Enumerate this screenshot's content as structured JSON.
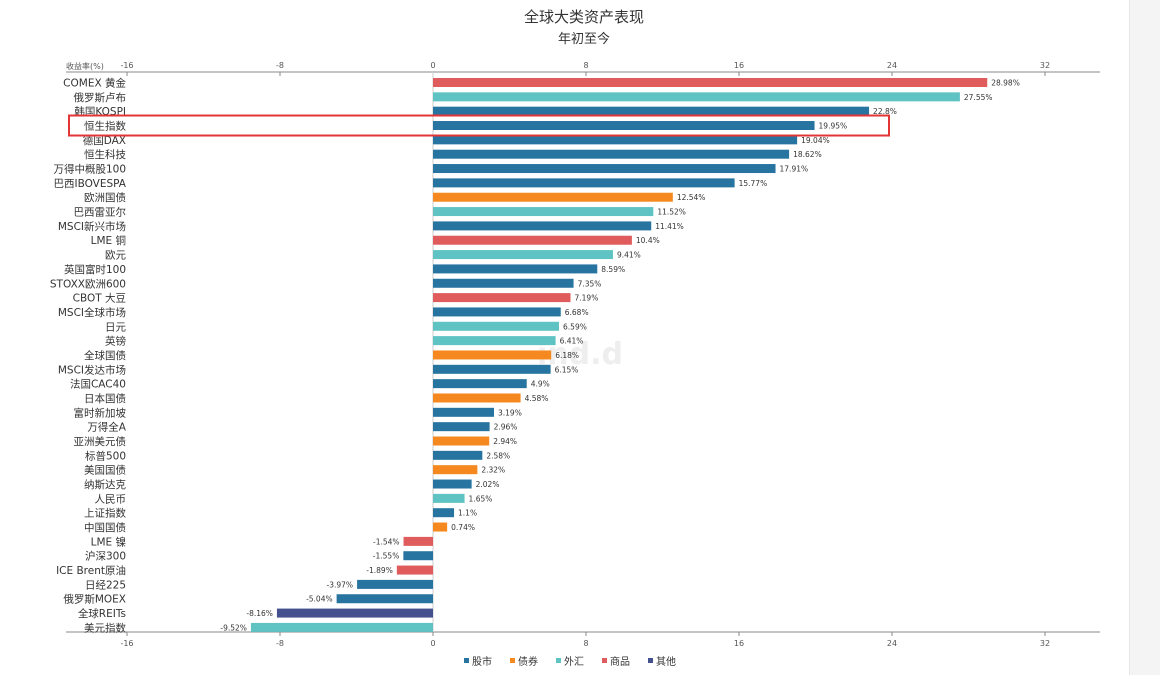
{
  "colors": {
    "stocks": "#2874a0",
    "bonds": "#f5891f",
    "fx": "#5ec3c2",
    "commodities": "#e05c5c",
    "other": "#45508f",
    "highlight": "#e33535",
    "axis": "#888888",
    "grid": "#dddddd",
    "text": "#333333"
  },
  "chart_data": {
    "type": "bar",
    "orientation": "horizontal",
    "title": "全球大类资产表现",
    "subtitle": "年初至今",
    "axis_unit_label": "收益率(%)",
    "xlim": [
      -16,
      35
    ],
    "ticks": [
      -16,
      -8,
      0,
      8,
      16,
      24,
      32
    ],
    "tick_labels": [
      "-16",
      "-8",
      "0",
      "8",
      "16",
      "24",
      "32"
    ],
    "legend": [
      {
        "key": "stocks",
        "label": "股市"
      },
      {
        "key": "bonds",
        "label": "债券"
      },
      {
        "key": "fx",
        "label": "外汇"
      },
      {
        "key": "commodities",
        "label": "商品"
      },
      {
        "key": "other",
        "label": "其他"
      }
    ],
    "highlighted": "恒生指数",
    "watermark": "ind.d",
    "bars": [
      {
        "name": "COMEX 黄金",
        "value": 28.98,
        "label": "28.98%",
        "cat": "commodities"
      },
      {
        "name": "俄罗斯卢布",
        "value": 27.55,
        "label": "27.55%",
        "cat": "fx"
      },
      {
        "name": "韩国KOSPI",
        "value": 22.8,
        "label": "22.8%",
        "cat": "stocks"
      },
      {
        "name": "恒生指数",
        "value": 19.95,
        "label": "19.95%",
        "cat": "stocks"
      },
      {
        "name": "德国DAX",
        "value": 19.04,
        "label": "19.04%",
        "cat": "stocks"
      },
      {
        "name": "恒生科技",
        "value": 18.62,
        "label": "18.62%",
        "cat": "stocks"
      },
      {
        "name": "万得中概股100",
        "value": 17.91,
        "label": "17.91%",
        "cat": "stocks"
      },
      {
        "name": "巴西IBOVESPA",
        "value": 15.77,
        "label": "15.77%",
        "cat": "stocks"
      },
      {
        "name": "欧洲国债",
        "value": 12.54,
        "label": "12.54%",
        "cat": "bonds"
      },
      {
        "name": "巴西雷亚尔",
        "value": 11.52,
        "label": "11.52%",
        "cat": "fx"
      },
      {
        "name": "MSCI新兴市场",
        "value": 11.41,
        "label": "11.41%",
        "cat": "stocks"
      },
      {
        "name": "LME 铜",
        "value": 10.4,
        "label": "10.4%",
        "cat": "commodities"
      },
      {
        "name": "欧元",
        "value": 9.41,
        "label": "9.41%",
        "cat": "fx"
      },
      {
        "name": "英国富时100",
        "value": 8.59,
        "label": "8.59%",
        "cat": "stocks"
      },
      {
        "name": "STOXX欧洲600",
        "value": 7.35,
        "label": "7.35%",
        "cat": "stocks"
      },
      {
        "name": "CBOT 大豆",
        "value": 7.19,
        "label": "7.19%",
        "cat": "commodities"
      },
      {
        "name": "MSCI全球市场",
        "value": 6.68,
        "label": "6.68%",
        "cat": "stocks"
      },
      {
        "name": "日元",
        "value": 6.59,
        "label": "6.59%",
        "cat": "fx"
      },
      {
        "name": "英镑",
        "value": 6.41,
        "label": "6.41%",
        "cat": "fx"
      },
      {
        "name": "全球国债",
        "value": 6.18,
        "label": "6.18%",
        "cat": "bonds"
      },
      {
        "name": "MSCI发达市场",
        "value": 6.15,
        "label": "6.15%",
        "cat": "stocks"
      },
      {
        "name": "法国CAC40",
        "value": 4.9,
        "label": "4.9%",
        "cat": "stocks"
      },
      {
        "name": "日本国债",
        "value": 4.58,
        "label": "4.58%",
        "cat": "bonds"
      },
      {
        "name": "富时新加坡",
        "value": 3.19,
        "label": "3.19%",
        "cat": "stocks"
      },
      {
        "name": "万得全A",
        "value": 2.96,
        "label": "2.96%",
        "cat": "stocks"
      },
      {
        "name": "亚洲美元债",
        "value": 2.94,
        "label": "2.94%",
        "cat": "bonds"
      },
      {
        "name": "标普500",
        "value": 2.58,
        "label": "2.58%",
        "cat": "stocks"
      },
      {
        "name": "美国国债",
        "value": 2.32,
        "label": "2.32%",
        "cat": "bonds"
      },
      {
        "name": "纳斯达克",
        "value": 2.02,
        "label": "2.02%",
        "cat": "stocks"
      },
      {
        "name": "人民币",
        "value": 1.65,
        "label": "1.65%",
        "cat": "fx"
      },
      {
        "name": "上证指数",
        "value": 1.1,
        "label": "1.1%",
        "cat": "stocks"
      },
      {
        "name": "中国国债",
        "value": 0.74,
        "label": "0.74%",
        "cat": "bonds"
      },
      {
        "name": "LME 镍",
        "value": -1.54,
        "label": "-1.54%",
        "cat": "commodities"
      },
      {
        "name": "沪深300",
        "value": -1.55,
        "label": "-1.55%",
        "cat": "stocks"
      },
      {
        "name": "ICE Brent原油",
        "value": -1.89,
        "label": "-1.89%",
        "cat": "commodities"
      },
      {
        "name": "日经225",
        "value": -3.97,
        "label": "-3.97%",
        "cat": "stocks"
      },
      {
        "name": "俄罗斯MOEX",
        "value": -5.04,
        "label": "-5.04%",
        "cat": "stocks"
      },
      {
        "name": "全球REITs",
        "value": -8.16,
        "label": "-8.16%",
        "cat": "other"
      },
      {
        "name": "美元指数",
        "value": -9.52,
        "label": "-9.52%",
        "cat": "fx"
      }
    ]
  }
}
